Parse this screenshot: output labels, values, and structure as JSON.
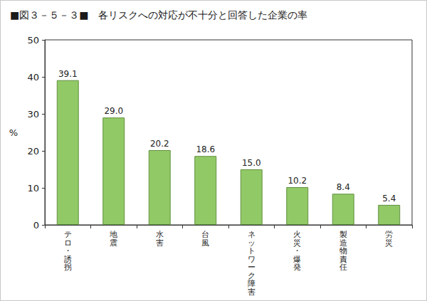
{
  "chart_data": {
    "type": "bar",
    "title": "■図３－５－３■　各リスクへの対応が不十分と回答した企業の率",
    "ylabel": "%",
    "categories": [
      "テロ・誘拐",
      "地震",
      "水害",
      "台風",
      "ネットワーク障害",
      "火災・爆発",
      "製造物責任",
      "労災"
    ],
    "values": [
      39.1,
      29.0,
      20.2,
      18.6,
      15.0,
      10.2,
      8.4,
      5.4
    ],
    "value_labels": [
      "39.1",
      "29.0",
      "20.2",
      "18.6",
      "15.0",
      "10.2",
      "8.4",
      "5.4"
    ],
    "color": "#92c967",
    "ylim": [
      0,
      50
    ],
    "yticks": [
      0,
      10,
      20,
      30,
      40,
      50
    ],
    "grid": false,
    "data_labels": true
  }
}
